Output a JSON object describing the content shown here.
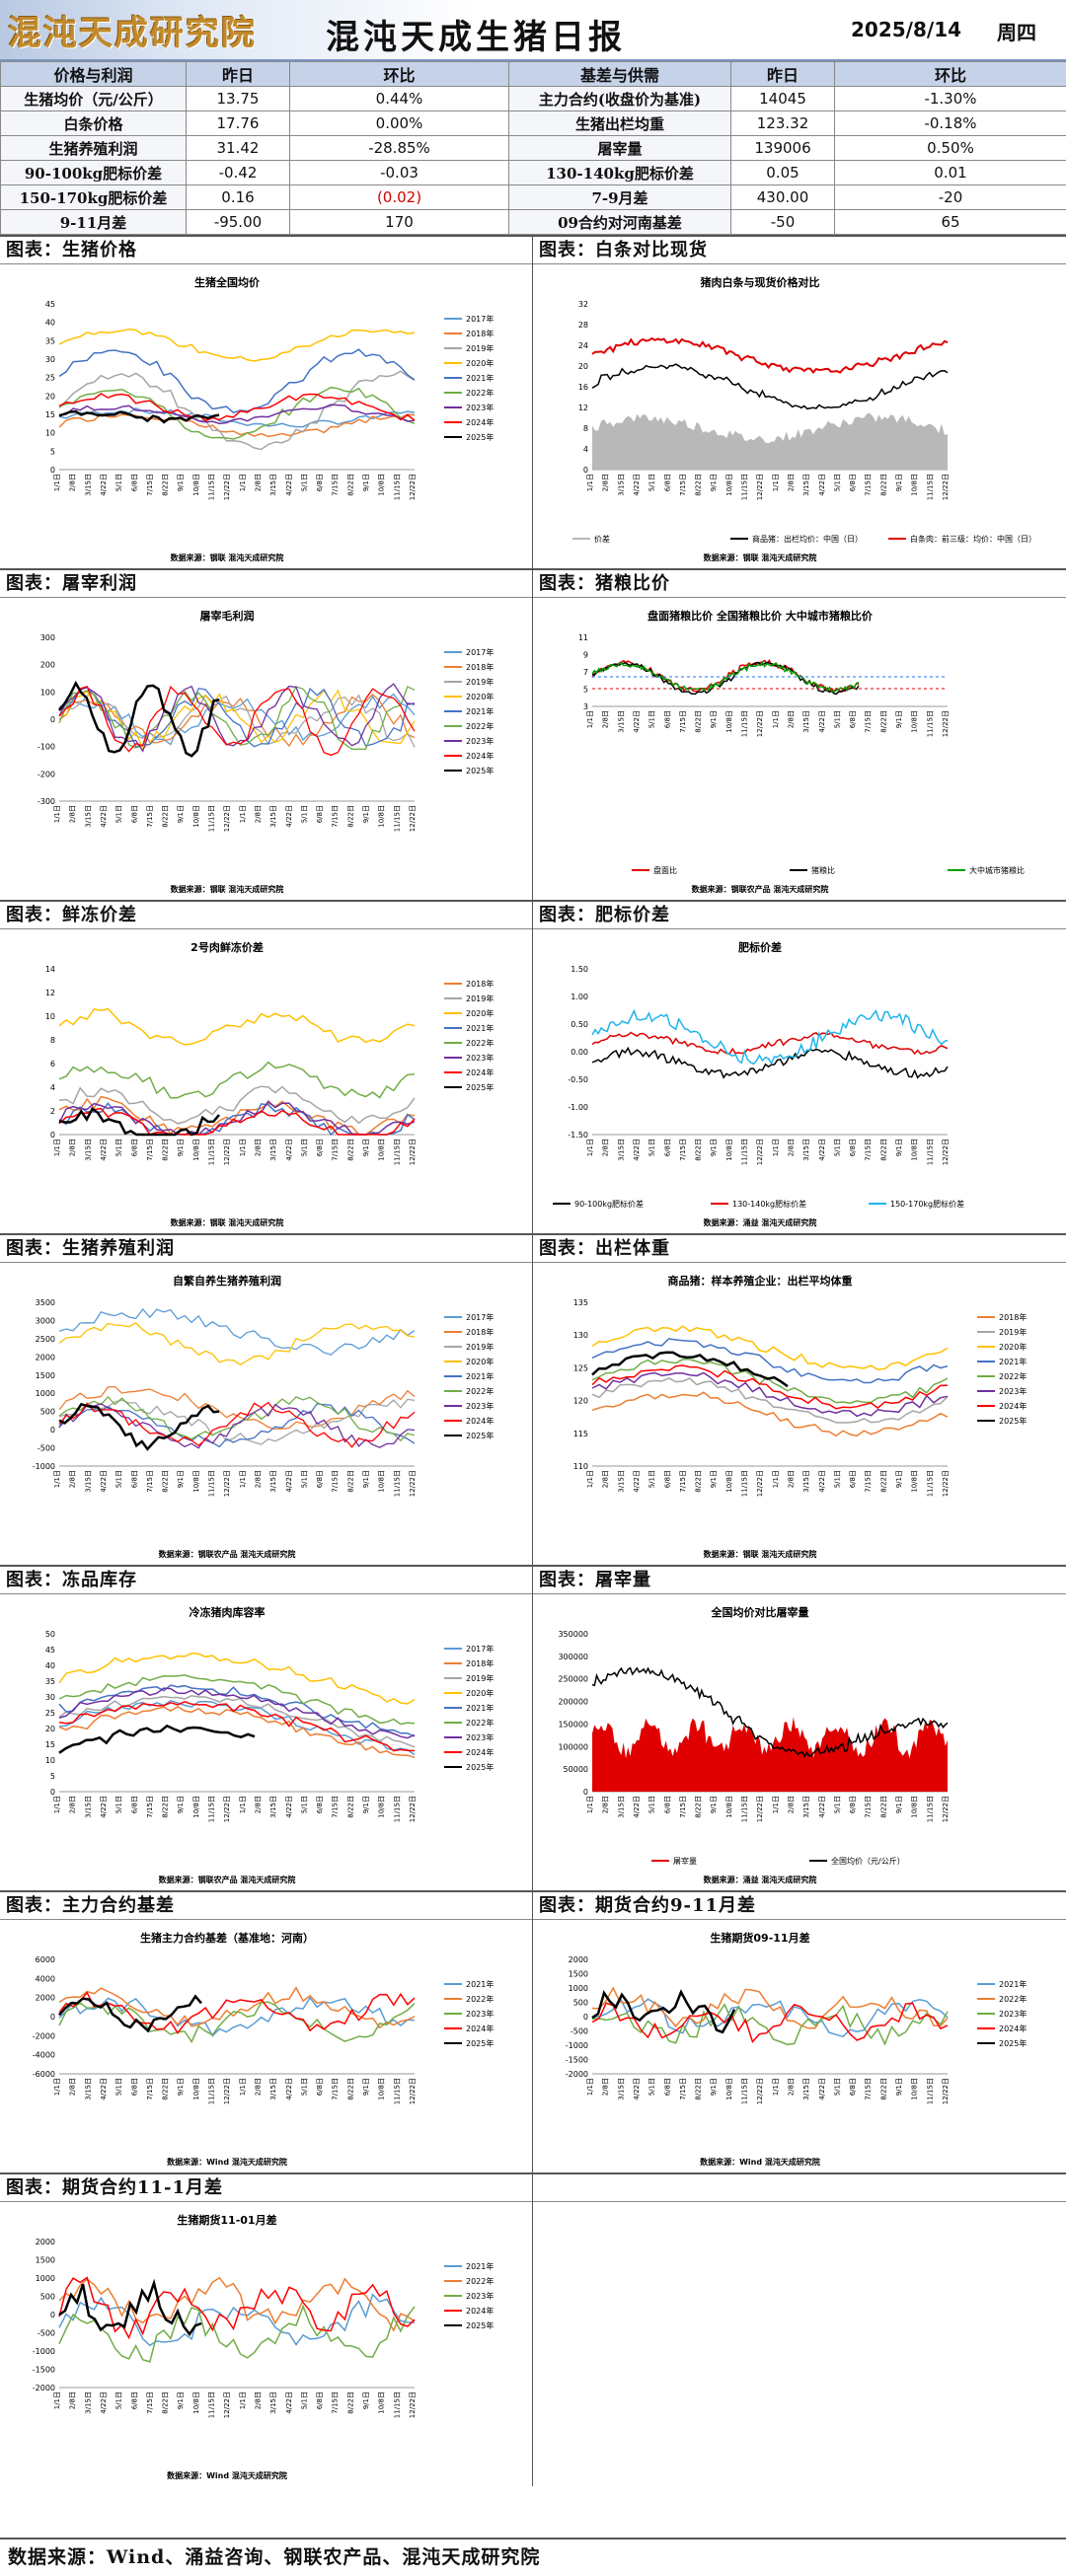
{
  "header": {
    "logo_text": "混沌天成研究院",
    "title": "混沌天成生猪日报",
    "date": "2025/8/14",
    "weekday": "周四"
  },
  "table": {
    "columns": [
      "价格与利润",
      "昨日",
      "环比",
      "基差与供需",
      "昨日",
      "环比"
    ],
    "rows": [
      [
        "生猪均价（元/公斤）",
        "13.75",
        "0.44%",
        "主力合约(收盘价为基准)",
        "14045",
        "-1.30%"
      ],
      [
        "白条价格",
        "17.76",
        "0.00%",
        "生猪出栏均重",
        "123.32",
        "-0.18%"
      ],
      [
        "生猪养殖利润",
        "31.42",
        "-28.85%",
        "屠宰量",
        "139006",
        "0.50%"
      ],
      [
        "90-100kg肥标价差",
        "-0.42",
        "-0.03",
        "130-140kg肥标价差",
        "0.05",
        "0.01"
      ],
      [
        "150-170kg肥标价差",
        "0.16",
        "(0.02)",
        "7-9月差",
        "430.00",
        "-20"
      ],
      [
        "9-11月差",
        "-95.00",
        "170",
        "09合约对河南基差",
        "-50",
        "65"
      ]
    ]
  },
  "panels": [
    {
      "title": "图表：生猪价格",
      "chart_title": "生猪全国均价",
      "source": "数据来源：钢联 混沌天成研究院"
    },
    {
      "title": "图表：白条对比现货",
      "chart_title": "猪肉白条与现货价格对比",
      "source": "数据来源：钢联 混沌天成研究院"
    },
    {
      "title": "图表：屠宰利润",
      "chart_title": "屠宰毛利润",
      "source": "数据来源：钢联 混沌天成研究院"
    },
    {
      "title": "图表：猪粮比价",
      "chart_title": "盘面猪粮比价 全国猪粮比价 大中城市猪粮比价",
      "source": "数据来源：钢联农产品 混沌天成研究院"
    },
    {
      "title": "图表：鲜冻价差",
      "chart_title": "2号肉鲜冻价差",
      "source": "数据来源：钢联 混沌天成研究院"
    },
    {
      "title": "图表：肥标价差",
      "chart_title": "肥标价差",
      "source": "数据来源：涌益 混沌天成研究院"
    },
    {
      "title": "图表：生猪养殖利润",
      "chart_title": "自繁自养生猪养殖利润",
      "source": "数据来源：钢联农产品 混沌天成研究院"
    },
    {
      "title": "图表：出栏体重",
      "chart_title": "商品猪：样本养殖企业：出栏平均体重",
      "source": "数据来源：钢联 混沌天成研究院"
    },
    {
      "title": "图表：冻品库存",
      "chart_title": "冷冻猪肉库容率",
      "source": "数据来源：钢联农产品 混沌天成研究院"
    },
    {
      "title": "图表：屠宰量",
      "chart_title": "全国均价对比屠宰量",
      "source": "数据来源：涌益 混沌天成研究院"
    },
    {
      "title": "图表：主力合约基差",
      "chart_title": "生猪主力合约基差（基准地：河南）",
      "source": "数据来源：Wind 混沌天成研究院"
    },
    {
      "title": "图表：期货合约9-11月差",
      "chart_title": "生猪期货09-11月差",
      "source": "数据来源：Wind 混沌天成研究院"
    },
    {
      "title": "图表：期货合约11-1月差",
      "chart_title": "生猪期货11-01月差",
      "source": "数据来源：Wind 混沌天成研究院"
    },
    {
      "title": "",
      "chart_title": "",
      "source": ""
    }
  ],
  "legends": {
    "years_2017_2025": [
      "2017年",
      "2018年",
      "2019年",
      "2020年",
      "2021年",
      "2022年",
      "2023年",
      "2024年",
      "2025年"
    ],
    "years_2018_2025": [
      "2018年",
      "2019年",
      "2020年",
      "2021年",
      "2022年",
      "2023年",
      "2024年",
      "2025年"
    ],
    "years_2021_2025": [
      "2021年",
      "2022年",
      "2023年",
      "2024年",
      "2025年"
    ],
    "baitiao": [
      "价差",
      "商品猪：出栏均价：中国（日）",
      "白条肉：前三级：均价：中国（日）"
    ],
    "zhuliang": [
      "盘面比",
      "猪粮比",
      "大中城市猪粮比"
    ],
    "feibiao": [
      "90-100kg肥标价差",
      "130-140kg肥标价差",
      "150-170kg肥标价差"
    ],
    "tuzai": [
      "屠宰量",
      "全国均价（元/公斤）"
    ]
  },
  "year_colors": [
    "#5b9bd5",
    "#ed7d31",
    "#a5a5a5",
    "#ffc000",
    "#4472c4",
    "#70ad47",
    "#7030a0",
    "#ff0000",
    "#000000"
  ],
  "footer": "数据来源：Wind、涌益咨询、钢联农产品、混沌天成研究院"
}
